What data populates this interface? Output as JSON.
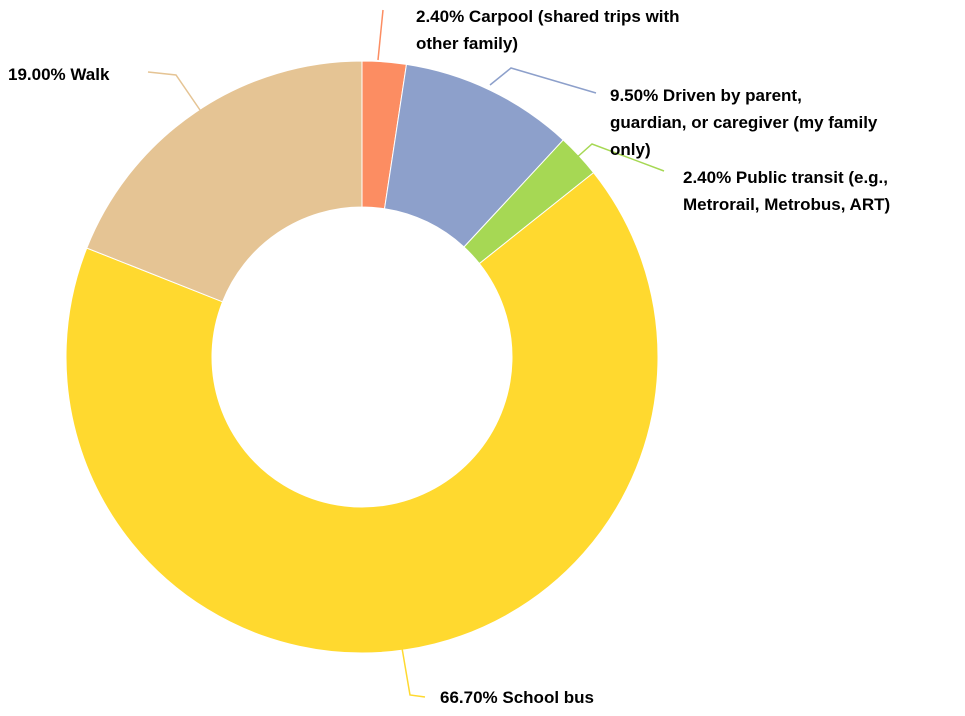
{
  "chart_data": {
    "type": "pie",
    "variant": "donut",
    "title": "",
    "start_angle_deg": 0,
    "direction": "clockwise",
    "slices": [
      {
        "label": "Carpool (shared trips with other family)",
        "value": 2.4,
        "value_label": "2.40%",
        "color": "#FC8D62",
        "label_lines": [
          "2.40% Carpool (shared trips with",
          "other family)"
        ]
      },
      {
        "label": "Driven by parent, guardian, or caregiver (my family only)",
        "value": 9.5,
        "value_label": "9.50%",
        "color": "#8DA0CB",
        "label_lines": [
          "9.50% Driven by parent,",
          "guardian, or caregiver (my family",
          "only)"
        ]
      },
      {
        "label": "Public transit (e.g., Metrorail, Metrobus, ART)",
        "value": 2.4,
        "value_label": "2.40%",
        "color": "#A6D854",
        "label_lines": [
          "2.40% Public transit (e.g.,",
          "Metrorail, Metrobus, ART)"
        ]
      },
      {
        "label": "School bus",
        "value": 66.7,
        "value_label": "66.70%",
        "color": "#FFD92F",
        "label_lines": [
          "66.70% School bus"
        ]
      },
      {
        "label": "Walk",
        "value": 19.0,
        "value_label": "19.00%",
        "color": "#E5C494",
        "label_lines": [
          "19.00% Walk"
        ]
      }
    ]
  }
}
